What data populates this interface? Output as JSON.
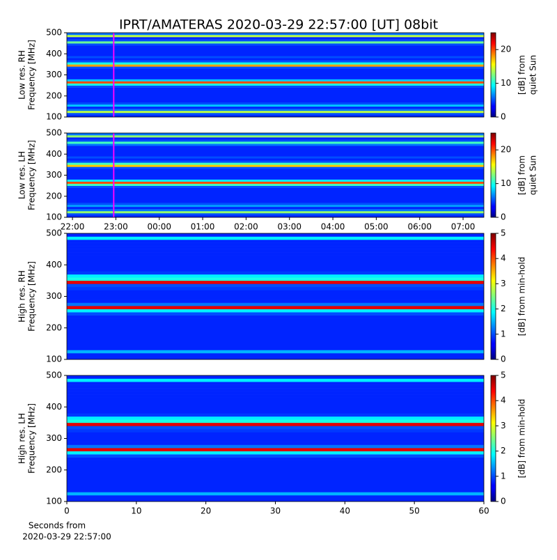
{
  "chart_data": [
    {
      "type": "heatmap",
      "title": "IPRT/AMATERAS 2020-03-29 22:57:00 [UT]   08bit",
      "ylabel": [
        "Low res. RH",
        "Frequency [MHz]"
      ],
      "ylim": [
        100,
        500
      ],
      "yticks": [
        100,
        200,
        300,
        400,
        500
      ],
      "xlim": [
        21.87,
        31.48
      ],
      "values": [
        4,
        5,
        14,
        6,
        4,
        8,
        5,
        4,
        4,
        4,
        4,
        4,
        4,
        4,
        5,
        10,
        20,
        8,
        4,
        4,
        4,
        4,
        4,
        5,
        18,
        10,
        5,
        4,
        5,
        4,
        4,
        4,
        4,
        4,
        5,
        12,
        5,
        4,
        14,
        6
      ],
      "clim": [
        0,
        25
      ],
      "cticks": [
        0,
        10,
        20
      ],
      "colorbar_label": [
        "[dB] from",
        "quiet Sun"
      ],
      "marker": {
        "x": 22.95,
        "color": "#ff00ff"
      }
    },
    {
      "type": "heatmap",
      "ylabel": [
        "Low res. LH",
        "Frequency [MHz]"
      ],
      "ylim": [
        100,
        500
      ],
      "yticks": [
        100,
        200,
        300,
        400,
        500
      ],
      "xlim": [
        21.87,
        31.48
      ],
      "xticks": [
        {
          "value": 22,
          "label": "22:00"
        },
        {
          "value": 23,
          "label": "23:00"
        },
        {
          "value": 24,
          "label": "00:00"
        },
        {
          "value": 25,
          "label": "01:00"
        },
        {
          "value": 26,
          "label": "02:00"
        },
        {
          "value": 27,
          "label": "03:00"
        },
        {
          "value": 28,
          "label": "04:00"
        },
        {
          "value": 29,
          "label": "05:00"
        },
        {
          "value": 30,
          "label": "06:00"
        },
        {
          "value": 31,
          "label": "07:00"
        }
      ],
      "values": [
        4,
        5,
        13,
        6,
        4,
        7,
        5,
        4,
        4,
        4,
        4,
        4,
        4,
        4,
        5,
        11,
        20,
        9,
        4,
        4,
        4,
        4,
        4,
        5,
        17,
        11,
        5,
        4,
        5,
        4,
        4,
        4,
        4,
        4,
        6,
        11,
        5,
        4,
        13,
        6
      ],
      "clim": [
        0,
        25
      ],
      "cticks": [
        0,
        10,
        20
      ],
      "colorbar_label": [
        "[dB] from",
        "quiet Sun"
      ],
      "marker": {
        "x": 22.95,
        "color": "#ff00ff"
      }
    },
    {
      "type": "heatmap",
      "ylabel": [
        "High res. RH",
        "Frequency [MHz]"
      ],
      "ylim": [
        100,
        500
      ],
      "yticks": [
        100,
        200,
        300,
        400,
        500
      ],
      "xlim": [
        0,
        60
      ],
      "values": [
        0.8,
        0.8,
        1.5,
        0.8,
        0.8,
        0.8,
        0.8,
        0.8,
        0.8,
        0.8,
        0.8,
        0.8,
        0.8,
        0.8,
        1,
        1.8,
        4.5,
        1.2,
        0.8,
        0.8,
        0.8,
        0.8,
        0.9,
        1,
        4.5,
        2,
        1.8,
        0.9,
        0.8,
        0.8,
        0.8,
        0.8,
        0.8,
        0.8,
        0.8,
        0.8,
        0.8,
        0.8,
        1.8,
        0.8
      ],
      "clim": [
        0,
        5
      ],
      "cticks": [
        0,
        1,
        2,
        3,
        4,
        5
      ],
      "colorbar_label": [
        "[dB] from min-hold"
      ]
    },
    {
      "type": "heatmap",
      "ylabel": [
        "High res. LH",
        "Frequency [MHz]"
      ],
      "ylim": [
        100,
        500
      ],
      "yticks": [
        100,
        200,
        300,
        400,
        500
      ],
      "xlim": [
        0,
        60
      ],
      "xticks": [
        0,
        10,
        20,
        30,
        40,
        50,
        60
      ],
      "xlabel": [
        "Seconds from",
        "2020-03-29 22:57:00"
      ],
      "values": [
        0.8,
        0.8,
        1.5,
        0.8,
        0.8,
        0.8,
        0.8,
        0.8,
        0.8,
        0.8,
        0.8,
        0.8,
        0.8,
        0.8,
        1,
        1.8,
        4.5,
        1.2,
        0.8,
        0.8,
        0.8,
        0.8,
        0.9,
        1,
        4.5,
        2,
        1.8,
        0.9,
        0.8,
        0.8,
        0.8,
        0.8,
        0.8,
        0.8,
        0.8,
        0.8,
        0.8,
        0.8,
        1.8,
        0.8
      ],
      "clim": [
        0,
        5
      ],
      "cticks": [
        0,
        1,
        2,
        3,
        4,
        5
      ],
      "colorbar_label": [
        "[dB] from min-hold"
      ]
    }
  ]
}
